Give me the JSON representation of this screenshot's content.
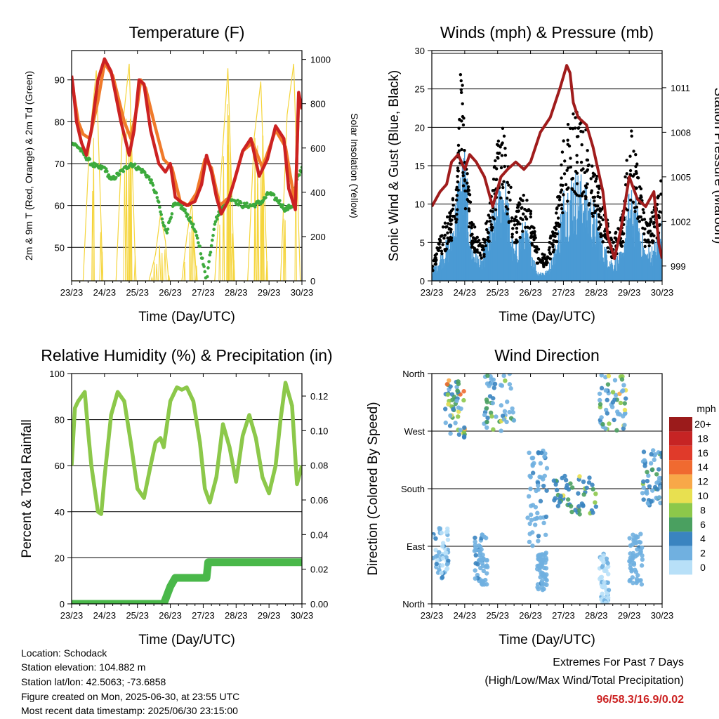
{
  "info": {
    "location": "Location: Schodack",
    "elevation": "Station elevation: 104.882 m",
    "latlon": "Station lat/lon: 42.5063; -73.6858",
    "created": "Figure created on Mon, 2025-06-30, at 23:55 UTC",
    "recent": "Most recent data timestamp: 2025/06/30 23:15:00"
  },
  "extremes": {
    "title": "Extremes For Past 7 Days",
    "subtitle": "(High/Low/Max Wind/Total Precipitation)",
    "values": "96/58.3/16.9/0.02",
    "color": "#cc2222"
  },
  "colors": {
    "temp_red": "#cc2222",
    "temp_orange": "#f07a2a",
    "dewpoint_green": "#3caa3c",
    "solar_yellow": "#f5d53c",
    "wind_blue": "#4a9ad4",
    "gust_black": "#000000",
    "pressure_maroon": "#a01c1c",
    "rh_lightgreen": "#8cc84a",
    "precip_green": "#4ab84a"
  },
  "chart_data": [
    {
      "type": "line",
      "title": "Temperature (F)",
      "xlabel": "Time (Day/UTC)",
      "ylabel": "2m & 9m T (Red, Orange) & 2m Td (Green)",
      "ylabel_right": "Solar Insolation (Yellow)",
      "x_ticks": [
        "23/23",
        "24/23",
        "25/23",
        "26/23",
        "27/23",
        "28/23",
        "29/23",
        "30/23"
      ],
      "xlim": [
        0,
        7
      ],
      "ylim": [
        42,
        97
      ],
      "yticks": [
        50,
        60,
        70,
        80,
        90
      ],
      "ylim_right": [
        0,
        1040
      ],
      "yticks_right": [
        0,
        200,
        400,
        600,
        800,
        1000
      ],
      "grid": true,
      "series": [
        {
          "name": "2m T",
          "x": [
            0,
            0.05,
            0.15,
            0.3,
            0.45,
            0.6,
            0.8,
            1.0,
            1.2,
            1.5,
            1.75,
            1.9,
            2.05,
            2.2,
            2.4,
            2.65,
            2.85,
            3.0,
            3.15,
            3.3,
            3.5,
            3.75,
            3.95,
            4.1,
            4.25,
            4.4,
            4.55,
            4.75,
            4.95,
            5.2,
            5.45,
            5.7,
            5.95,
            6.2,
            6.45,
            6.6,
            6.8,
            6.9,
            7.0
          ],
          "values": [
            91,
            88,
            80,
            75,
            72,
            78,
            90,
            95,
            92,
            80,
            72,
            78,
            90,
            89,
            78,
            70,
            68,
            70,
            62,
            61,
            60,
            61,
            65,
            72,
            68,
            62,
            58,
            61,
            66,
            73,
            76,
            67,
            71,
            79,
            76,
            64,
            59,
            87,
            83
          ]
        },
        {
          "name": "9m T",
          "x": [
            0,
            0.1,
            0.2,
            0.35,
            0.55,
            0.8,
            1.0,
            1.25,
            1.6,
            1.8,
            2.0,
            2.1,
            2.25,
            2.5,
            2.8,
            3.05,
            3.3,
            3.55,
            3.8,
            4.05,
            4.25,
            4.5,
            4.8,
            5.2,
            5.5,
            5.8,
            6.2,
            6.5,
            6.8,
            6.9,
            7.0
          ],
          "values": [
            90,
            85,
            80,
            77,
            76,
            85,
            94,
            91,
            80,
            76,
            84,
            90,
            88,
            80,
            71,
            69,
            61,
            60,
            63,
            71,
            69,
            60,
            62,
            73,
            75,
            69,
            78,
            74,
            60,
            86,
            83
          ]
        },
        {
          "name": "2m Td",
          "x": [
            0,
            0.2,
            0.4,
            0.6,
            0.8,
            1.0,
            1.2,
            1.5,
            1.8,
            2.0,
            2.2,
            2.4,
            2.6,
            2.8,
            2.9,
            3.1,
            3.3,
            3.5,
            3.7,
            3.9,
            4.1,
            4.2,
            4.35,
            4.6,
            4.8,
            5.0,
            5.2,
            5.5,
            5.8,
            6.0,
            6.3,
            6.5,
            6.7,
            6.85,
            7.0
          ],
          "values": [
            75,
            74,
            72,
            70,
            69,
            69,
            66,
            68,
            70,
            69,
            68,
            66,
            62,
            55,
            54,
            60,
            60,
            58,
            55,
            50,
            42,
            48,
            56,
            60,
            62,
            61,
            60,
            60,
            61,
            63,
            61,
            59,
            60,
            66,
            69
          ]
        },
        {
          "name": "Solar",
          "axis": "right",
          "x": [
            0,
            0.35,
            0.55,
            0.75,
            0.95,
            1.35,
            1.55,
            1.75,
            1.95,
            2.35,
            2.55,
            2.7,
            2.85,
            2.95,
            3.35,
            3.5,
            3.65,
            3.8,
            4.35,
            4.55,
            4.75,
            4.95,
            5.35,
            5.55,
            5.75,
            5.95,
            6.35,
            6.55,
            6.75,
            6.95,
            7.0
          ],
          "values": [
            0,
            0,
            650,
            950,
            0,
            0,
            700,
            980,
            0,
            0,
            120,
            300,
            180,
            0,
            0,
            200,
            350,
            0,
            0,
            500,
            960,
            0,
            0,
            650,
            900,
            0,
            0,
            750,
            980,
            0,
            0
          ]
        }
      ]
    },
    {
      "type": "scatter",
      "title": "Winds (mph) & Pressure (mb)",
      "xlabel": "Time (Day/UTC)",
      "ylabel": "Sonic Wind & Gust (Blue, Black)",
      "ylabel_right": "Station Pressure (Maroon)",
      "x_ticks": [
        "23/23",
        "24/23",
        "25/23",
        "26/23",
        "27/23",
        "28/23",
        "29/23",
        "30/23"
      ],
      "xlim": [
        0,
        7
      ],
      "ylim": [
        0,
        30
      ],
      "yticks": [
        0,
        5,
        10,
        15,
        20,
        25,
        30
      ],
      "ylim_right": [
        998,
        1013.5
      ],
      "yticks_right": [
        999,
        1002,
        1005,
        1008,
        1011
      ],
      "grid": true,
      "series": [
        {
          "name": "Sonic Wind",
          "x": [
            0,
            0.3,
            0.6,
            0.8,
            1.0,
            1.2,
            1.5,
            1.8,
            2.0,
            2.2,
            2.5,
            2.8,
            3.0,
            3.2,
            3.5,
            3.8,
            4.0,
            4.3,
            4.6,
            4.9,
            5.2,
            5.5,
            5.8,
            6.0,
            6.2,
            6.5,
            6.8,
            7.0
          ],
          "values": [
            1,
            3,
            5,
            10,
            13,
            4,
            2,
            6,
            9,
            11,
            3,
            6,
            4,
            1,
            1,
            4,
            9,
            11,
            10,
            8,
            4,
            2,
            3,
            9,
            8,
            3,
            4,
            6
          ]
        },
        {
          "name": "Gust",
          "x": [
            0,
            0.3,
            0.6,
            0.8,
            0.9,
            1.0,
            1.2,
            1.5,
            1.8,
            2.0,
            2.2,
            2.5,
            2.8,
            3.0,
            3.2,
            3.5,
            3.8,
            4.0,
            4.3,
            4.6,
            4.9,
            5.2,
            5.5,
            5.8,
            6.0,
            6.2,
            6.5,
            6.8,
            7.0
          ],
          "values": [
            2,
            6,
            9,
            16,
            28,
            18,
            8,
            4,
            10,
            17,
            19,
            8,
            11,
            9,
            4,
            3,
            9,
            17,
            21,
            19,
            15,
            9,
            5,
            8,
            19,
            16,
            7,
            9,
            14
          ]
        },
        {
          "name": "Station Pressure",
          "axis": "right",
          "x": [
            0,
            0.25,
            0.45,
            0.6,
            0.8,
            1.0,
            1.15,
            1.35,
            1.6,
            1.85,
            2.1,
            2.3,
            2.55,
            2.8,
            3.0,
            3.3,
            3.6,
            3.9,
            4.1,
            4.2,
            4.3,
            4.45,
            4.7,
            4.9,
            5.2,
            5.35,
            5.55,
            5.75,
            6.0,
            6.25,
            6.5,
            6.75,
            6.9,
            7.0
          ],
          "values": [
            1003,
            1004,
            1004.5,
            1006,
            1006.5,
            1005.5,
            1006.5,
            1006,
            1005,
            1003,
            1005,
            1005.5,
            1006,
            1005.5,
            1006,
            1008,
            1009,
            1011,
            1012.5,
            1012,
            1010,
            1009,
            1008.5,
            1007,
            1004,
            1001,
            999.5,
            1001.5,
            1005,
            1003.5,
            1003,
            1004,
            1000.5,
            999.5
          ]
        }
      ]
    },
    {
      "type": "line",
      "title": "Relative Humidity (%) & Precipitation (in)",
      "xlabel": "Time (Day/UTC)",
      "ylabel": "Percent & Total Rainfall",
      "x_ticks": [
        "23/23",
        "24/23",
        "25/23",
        "26/23",
        "27/23",
        "28/23",
        "29/23",
        "30/23"
      ],
      "xlim": [
        0,
        7
      ],
      "ylim": [
        0,
        100
      ],
      "yticks": [
        0,
        20,
        40,
        60,
        80,
        100
      ],
      "ylim_right": [
        0,
        0.133
      ],
      "yticks_right": [
        0,
        0.02,
        0.04,
        0.06,
        0.08,
        0.1,
        0.12
      ],
      "yticklabels_right": [
        "0.00",
        "0.02",
        "0.04",
        "0.06",
        "0.08",
        "0.10",
        "0.12"
      ],
      "grid": true,
      "series": [
        {
          "name": "RH",
          "x": [
            0,
            0.1,
            0.2,
            0.4,
            0.5,
            0.6,
            0.8,
            0.9,
            1.0,
            1.2,
            1.4,
            1.6,
            1.8,
            2.0,
            2.2,
            2.4,
            2.55,
            2.7,
            2.8,
            3.0,
            3.2,
            3.35,
            3.5,
            3.7,
            3.9,
            4.05,
            4.2,
            4.4,
            4.6,
            4.8,
            5.0,
            5.2,
            5.4,
            5.6,
            5.8,
            6.0,
            6.2,
            6.35,
            6.5,
            6.7,
            6.85,
            7.0
          ],
          "values": [
            60,
            85,
            88,
            92,
            75,
            60,
            40,
            39,
            55,
            82,
            92,
            88,
            70,
            50,
            46,
            60,
            70,
            72,
            68,
            88,
            94,
            93,
            94,
            88,
            70,
            50,
            44,
            55,
            78,
            68,
            53,
            73,
            82,
            72,
            55,
            48,
            60,
            80,
            96,
            86,
            52,
            60
          ]
        },
        {
          "name": "Precip",
          "axis": "right",
          "x": [
            0,
            2.8,
            2.9,
            3.0,
            3.15,
            4.1,
            4.15,
            7.0
          ],
          "values": [
            0,
            0,
            0.005,
            0.01,
            0.015,
            0.015,
            0.024,
            0.024
          ]
        }
      ]
    },
    {
      "type": "scatter",
      "title": "Wind Direction",
      "xlabel": "Time (Day/UTC)",
      "ylabel": "Direction (Colored By Speed)",
      "x_ticks": [
        "23/23",
        "24/23",
        "25/23",
        "26/23",
        "27/23",
        "28/23",
        "29/23",
        "30/23"
      ],
      "xlim": [
        0,
        7
      ],
      "ylim": [
        0,
        360
      ],
      "ytick_labels": [
        "North",
        "East",
        "South",
        "West",
        "North"
      ],
      "yticks": [
        0,
        90,
        180,
        270,
        360
      ],
      "grid": true,
      "legend": {
        "title": "mph",
        "labels": [
          "20+",
          "18",
          "16",
          "14",
          "12",
          "10",
          "8",
          "6",
          "4",
          "2",
          "0"
        ],
        "colors": [
          "#9b1b1b",
          "#c62424",
          "#e03a2a",
          "#f06a30",
          "#f8a848",
          "#e8e050",
          "#8cc84a",
          "#4aa060",
          "#3a84c0",
          "#70b0e0",
          "#b8e0f8"
        ],
        "placement": "right"
      },
      "clusters": [
        {
          "x": [
            0,
            0.5
          ],
          "dir": [
            40,
            120
          ],
          "speed": [
            0,
            5
          ]
        },
        {
          "x": [
            0.4,
            1.0
          ],
          "dir": [
            260,
            350
          ],
          "speed": [
            2,
            16
          ]
        },
        {
          "x": [
            1.3,
            1.7
          ],
          "dir": [
            30,
            110
          ],
          "speed": [
            1,
            5
          ]
        },
        {
          "x": [
            1.5,
            2.5
          ],
          "dir": [
            270,
            360
          ],
          "speed": [
            1,
            12
          ]
        },
        {
          "x": [
            2.9,
            3.5
          ],
          "dir": [
            90,
            240
          ],
          "speed": [
            1,
            5
          ]
        },
        {
          "x": [
            3.2,
            3.5
          ],
          "dir": [
            20,
            80
          ],
          "speed": [
            1,
            4
          ]
        },
        {
          "x": [
            3.7,
            5.0
          ],
          "dir": [
            140,
            200
          ],
          "speed": [
            3,
            12
          ]
        },
        {
          "x": [
            5.1,
            5.9
          ],
          "dir": [
            270,
            360
          ],
          "speed": [
            1,
            14
          ]
        },
        {
          "x": [
            5.1,
            5.4
          ],
          "dir": [
            0,
            80
          ],
          "speed": [
            0,
            3
          ]
        },
        {
          "x": [
            6.0,
            6.4
          ],
          "dir": [
            30,
            110
          ],
          "speed": [
            1,
            4
          ]
        },
        {
          "x": [
            6.4,
            7.0
          ],
          "dir": [
            150,
            240
          ],
          "speed": [
            2,
            8
          ]
        }
      ]
    }
  ]
}
